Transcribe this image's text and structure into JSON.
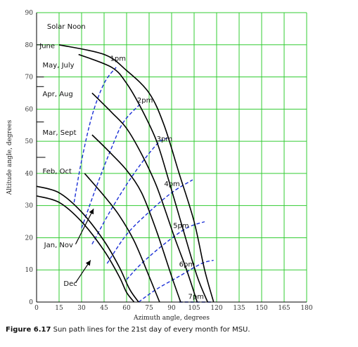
{
  "chart_data": {
    "type": "line",
    "title": "",
    "xlabel": "Azimuth angle, degrees",
    "ylabel": "Altitude angle, degrees",
    "xlim": [
      0,
      180
    ],
    "ylim": [
      0,
      90
    ],
    "xticks": [
      0,
      15,
      30,
      45,
      60,
      75,
      90,
      105,
      120,
      135,
      150,
      165,
      180
    ],
    "yticks": [
      0,
      10,
      20,
      30,
      40,
      50,
      60,
      70,
      80,
      90
    ],
    "grid": true,
    "grid_color": "#33cc33",
    "sun_color": "#000000",
    "hour_color": "#1a2fd6",
    "series": [
      {
        "name": "June",
        "x": [
          15,
          45,
          60,
          75,
          85,
          95,
          105,
          112,
          118
        ],
        "y": [
          80,
          77,
          72,
          65,
          55,
          40,
          25,
          10,
          0
        ]
      },
      {
        "name": "May, July",
        "x": [
          28,
          50,
          60,
          70,
          80,
          88,
          98,
          107,
          114
        ],
        "y": [
          77,
          73,
          68,
          60,
          50,
          38,
          22,
          8,
          0
        ]
      },
      {
        "name": "Apr, Aug",
        "x": [
          37,
          50,
          60,
          70,
          80,
          92,
          100,
          107
        ],
        "y": [
          65,
          59,
          54,
          46,
          36,
          20,
          10,
          0
        ]
      },
      {
        "name": "Mar, Sept",
        "x": [
          37,
          50,
          60,
          70,
          80,
          90,
          96
        ],
        "y": [
          52,
          46,
          41,
          34,
          22,
          8,
          0
        ]
      },
      {
        "name": "Feb, Oct",
        "x": [
          32,
          45,
          55,
          65,
          75,
          82
        ],
        "y": [
          40,
          33,
          27,
          19,
          8,
          0
        ]
      },
      {
        "name": "Jan, Nov",
        "x": [
          0,
          15,
          30,
          45,
          55,
          62,
          68
        ],
        "y": [
          36,
          34,
          28,
          19,
          11,
          4,
          0
        ]
      },
      {
        "name": "Dec",
        "x": [
          0,
          15,
          30,
          45,
          55,
          60,
          65
        ],
        "y": [
          33,
          31,
          25,
          16,
          8,
          3,
          0
        ]
      }
    ],
    "hour_lines": [
      {
        "name": "1pm",
        "x": [
          25,
          30,
          37,
          45,
          53
        ],
        "y": [
          31,
          44,
          58,
          68,
          73
        ]
      },
      {
        "name": "2pm",
        "x": [
          30,
          40,
          50,
          58,
          70
        ],
        "y": [
          23,
          36,
          48,
          56,
          62
        ]
      },
      {
        "name": "3pm",
        "x": [
          37,
          50,
          65,
          80,
          87
        ],
        "y": [
          18,
          29,
          40,
          49,
          51
        ]
      },
      {
        "name": "4pm",
        "x": [
          47,
          60,
          75,
          90,
          104
        ],
        "y": [
          12,
          21,
          28,
          34,
          38
        ]
      },
      {
        "name": "5pm",
        "x": [
          60,
          70,
          85,
          100,
          112
        ],
        "y": [
          7,
          12,
          18,
          23,
          25
        ]
      },
      {
        "name": "6pm",
        "x": [
          68,
          80,
          95,
          110,
          118
        ],
        "y": [
          0,
          4,
          8,
          12,
          13
        ]
      },
      {
        "name": "7pm",
        "x": [
          95,
          108,
          117
        ],
        "y": [
          0,
          0,
          0
        ]
      }
    ],
    "annotations": [
      {
        "text": "Solar Noon",
        "x": 7,
        "y": 85
      },
      {
        "text": "June",
        "x": 2,
        "y": 79
      },
      {
        "text": "May, July",
        "x": 4,
        "y": 73
      },
      {
        "text": "Apr, Aug",
        "x": 4,
        "y": 64
      },
      {
        "text": "Mar, Sept",
        "x": 4,
        "y": 52
      },
      {
        "text": "Feb, Oct",
        "x": 4,
        "y": 40
      },
      {
        "text": "Jan, Nov",
        "x": 5,
        "y": 17
      },
      {
        "text": "Dec",
        "x": 18,
        "y": 5
      },
      {
        "text": "1pm",
        "x": 49,
        "y": 75
      },
      {
        "text": "2pm",
        "x": 67,
        "y": 62
      },
      {
        "text": "3pm",
        "x": 80,
        "y": 50
      },
      {
        "text": "4pm",
        "x": 85,
        "y": 36
      },
      {
        "text": "5pm",
        "x": 91,
        "y": 23
      },
      {
        "text": "6pm",
        "x": 95,
        "y": 11
      },
      {
        "text": "7pm",
        "x": 101,
        "y": 1
      }
    ]
  },
  "caption": {
    "figure": "Figure 6.17",
    "text": "Sun path lines for the 21st day of every month for MSU."
  }
}
